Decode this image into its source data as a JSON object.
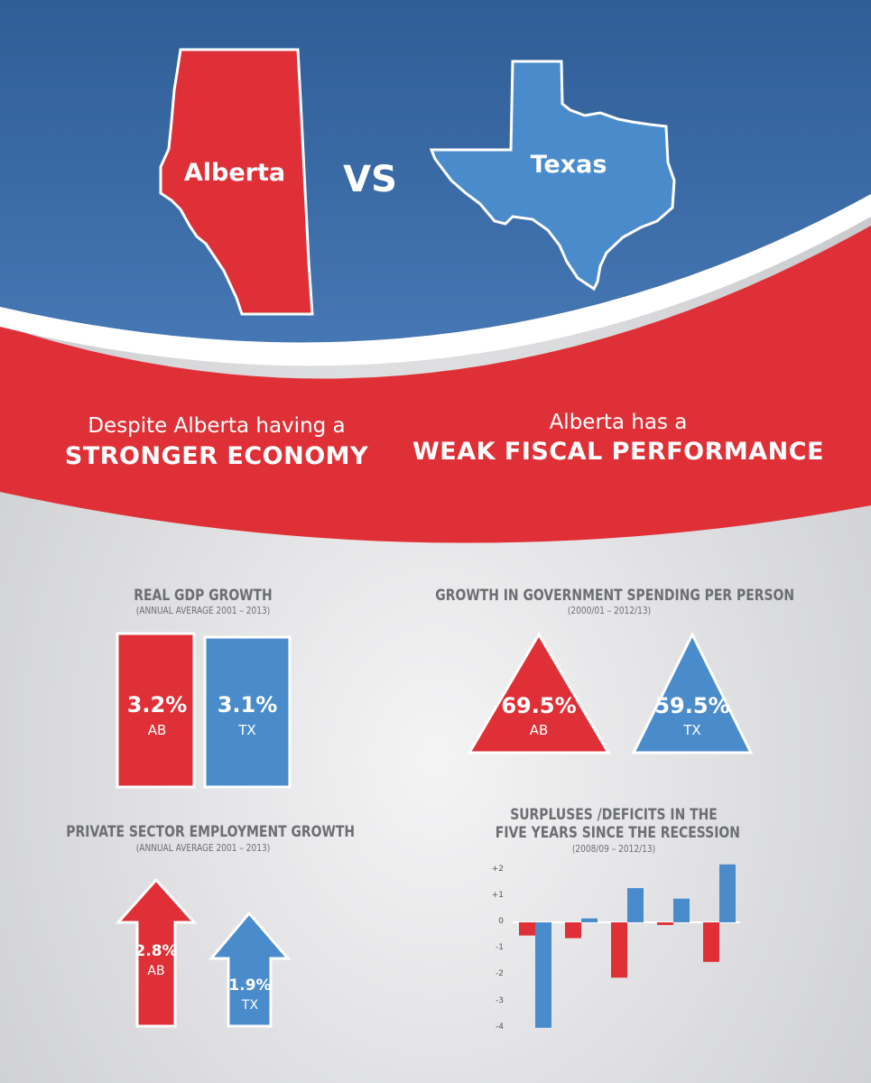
{
  "header": {
    "left_name": "Alberta",
    "vs": "VS",
    "right_name": "Texas"
  },
  "banner": {
    "left_line1": "Despite Alberta having a",
    "left_line2": "STRONGER ECONOMY",
    "right_line1": "Alberta has a",
    "right_line2": "WEAK FISCAL PERFORMANCE"
  },
  "colors": {
    "blue_dark": "#3b6aa3",
    "red": "#e03037",
    "blue": "#4a8ccb",
    "white": "#ffffff"
  },
  "chart_data": [
    {
      "type": "bar",
      "title": "REAL GDP GROWTH",
      "subtitle": "(ANNUAL AVERAGE 2001 – 2013)",
      "categories": [
        "AB",
        "TX"
      ],
      "values": [
        3.2,
        3.1
      ],
      "labels": [
        "3.2%",
        "3.1%"
      ]
    },
    {
      "type": "bar",
      "title": "GROWTH IN GOVERNMENT SPENDING PER PERSON",
      "subtitle": "(2000/01 – 2012/13)",
      "categories": [
        "AB",
        "TX"
      ],
      "values": [
        69.5,
        59.5
      ],
      "labels": [
        "69.5%",
        "59.5%"
      ]
    },
    {
      "type": "bar",
      "title": "PRIVATE SECTOR EMPLOYMENT GROWTH",
      "subtitle": "(ANNUAL AVERAGE 2001 – 2013)",
      "categories": [
        "AB",
        "TX"
      ],
      "values": [
        2.8,
        1.9
      ],
      "labels": [
        "2.8%",
        "1.9%"
      ]
    },
    {
      "type": "bar",
      "title_line1": "SURPLUSES /DEFICITS IN THE",
      "title_line2": "FIVE YEARS SINCE THE RECESSION",
      "subtitle": "(2008/09 – 2012/13)",
      "y_ticks": [
        "+2",
        "+1",
        "0",
        "-1",
        "-2",
        "-3",
        "-4"
      ],
      "ylim": [
        -4,
        2
      ],
      "series": [
        {
          "values": [
            -0.5,
            -0.6,
            -2.1,
            -0.1,
            -1.5
          ]
        },
        {
          "values": [
            -4.0,
            0.15,
            1.3,
            0.9,
            2.2
          ]
        }
      ]
    }
  ]
}
